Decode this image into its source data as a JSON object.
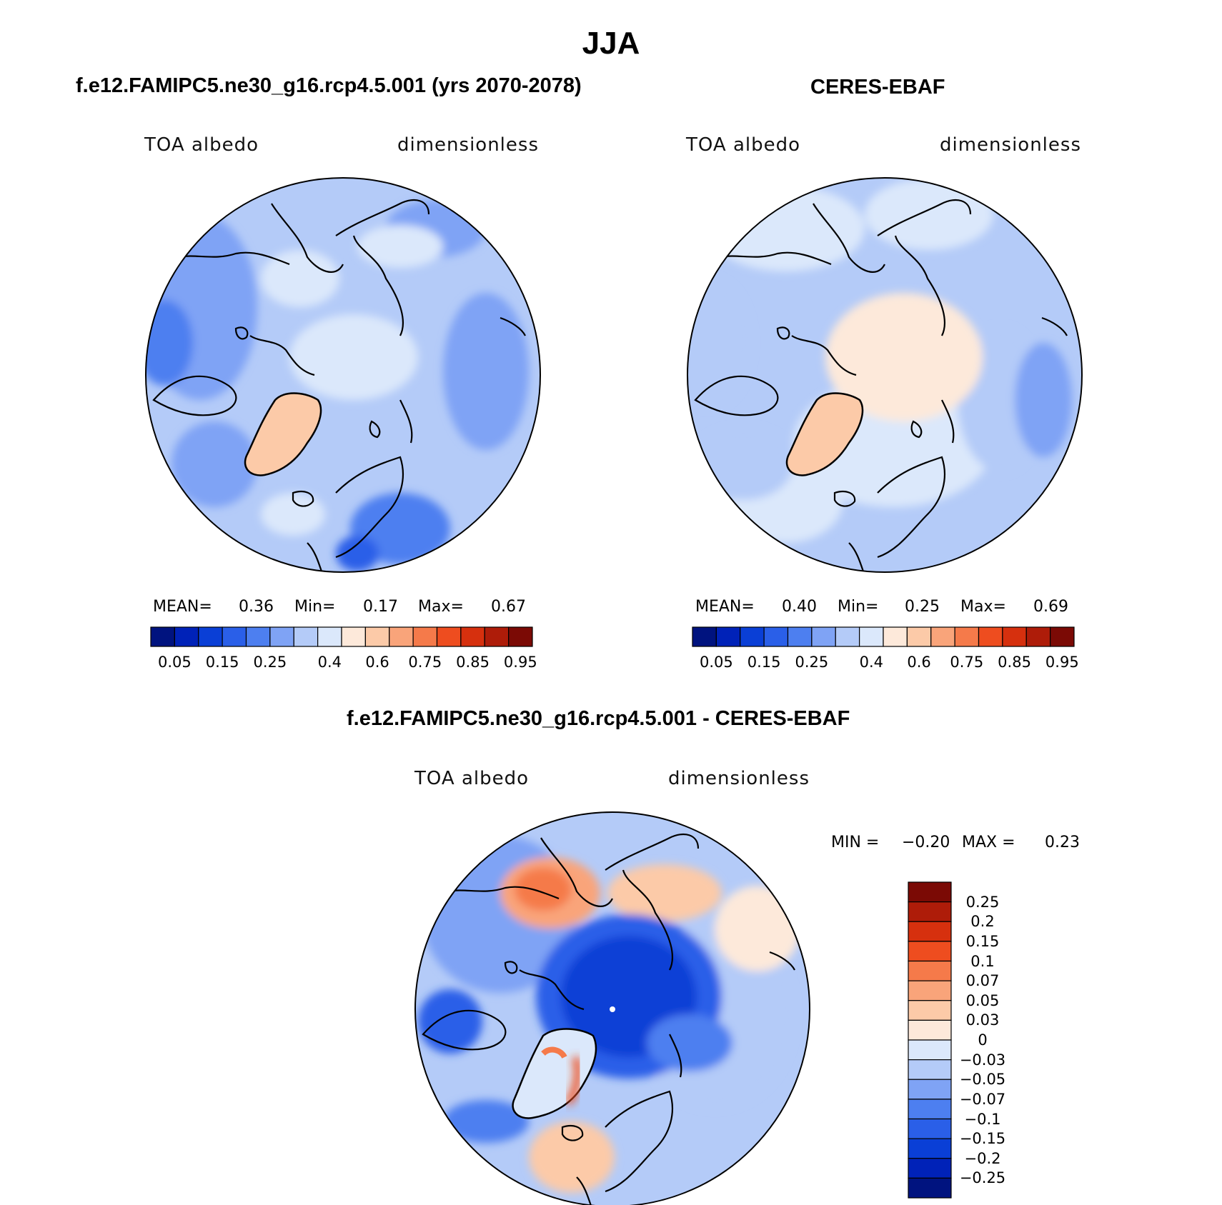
{
  "title": "JJA",
  "panels": [
    {
      "heading": "f.e12.FAMIPC5.ne30_g16.rcp4.5.001 (yrs 2070-2078)",
      "variable": "TOA albedo",
      "units": "dimensionless",
      "stats": {
        "mean_label": "MEAN=",
        "mean": "0.36",
        "min_label": "Min=",
        "min": "0.17",
        "max_label": "Max=",
        "max": "0.67"
      }
    },
    {
      "heading": "CERES-EBAF",
      "variable": "TOA albedo",
      "units": "dimensionless",
      "stats": {
        "mean_label": "MEAN=",
        "mean": "0.40",
        "min_label": "Min=",
        "min": "0.25",
        "max_label": "Max=",
        "max": "0.69"
      }
    },
    {
      "heading": "f.e12.FAMIPC5.ne30_g16.rcp4.5.001 - CERES-EBAF",
      "variable": "TOA albedo",
      "units": "dimensionless",
      "stats": {
        "min_label": "MIN =",
        "min": "−0.20",
        "max_label": "MAX =",
        "max": "0.23"
      }
    }
  ],
  "chart_data": [
    {
      "type": "heatmap",
      "projection": "north polar stereographic",
      "title": "f.e12.FAMIPC5.ne30_g16.rcp4.5.001 (yrs 2070-2078)",
      "variable": "TOA albedo",
      "units": "dimensionless",
      "mean": 0.36,
      "min": 0.17,
      "max": 0.67,
      "colorbar": {
        "levels": [
          0.05,
          0.1,
          0.15,
          0.2,
          0.25,
          0.3,
          0.35,
          0.4,
          0.5,
          0.6,
          0.7,
          0.75,
          0.8,
          0.85,
          0.9,
          0.95
        ],
        "tick_labels": [
          "0.05",
          "0.15",
          "0.25",
          "0.4",
          "0.6",
          "0.75",
          "0.85",
          "0.95"
        ],
        "colors": [
          "#00137f",
          "#0022b8",
          "#0a3fd6",
          "#2a5fe8",
          "#4d7ff0",
          "#7fa3f5",
          "#b4cbf8",
          "#dbe8fb",
          "#fde9da",
          "#fccaa8",
          "#f9a47a",
          "#f57a4a",
          "#ee4d1f",
          "#d6300e",
          "#ae1c09",
          "#7b0a05"
        ]
      }
    },
    {
      "type": "heatmap",
      "projection": "north polar stereographic",
      "title": "CERES-EBAF",
      "variable": "TOA albedo",
      "units": "dimensionless",
      "mean": 0.4,
      "min": 0.25,
      "max": 0.69,
      "colorbar": {
        "levels": [
          0.05,
          0.1,
          0.15,
          0.2,
          0.25,
          0.3,
          0.35,
          0.4,
          0.5,
          0.6,
          0.7,
          0.75,
          0.8,
          0.85,
          0.9,
          0.95
        ],
        "tick_labels": [
          "0.05",
          "0.15",
          "0.25",
          "0.4",
          "0.6",
          "0.75",
          "0.85",
          "0.95"
        ],
        "colors": [
          "#00137f",
          "#0022b8",
          "#0a3fd6",
          "#2a5fe8",
          "#4d7ff0",
          "#7fa3f5",
          "#b4cbf8",
          "#dbe8fb",
          "#fde9da",
          "#fccaa8",
          "#f9a47a",
          "#f57a4a",
          "#ee4d1f",
          "#d6300e",
          "#ae1c09",
          "#7b0a05"
        ]
      }
    },
    {
      "type": "heatmap",
      "projection": "north polar stereographic",
      "title": "f.e12.FAMIPC5.ne30_g16.rcp4.5.001 - CERES-EBAF",
      "variable": "TOA albedo",
      "units": "dimensionless",
      "min": -0.2,
      "max": 0.23,
      "colorbar": {
        "orientation": "vertical",
        "levels": [
          -0.25,
          -0.2,
          -0.15,
          -0.1,
          -0.07,
          -0.05,
          -0.03,
          0,
          0.03,
          0.05,
          0.07,
          0.1,
          0.15,
          0.2,
          0.25
        ],
        "tick_labels": [
          "0.25",
          "0.2",
          "0.15",
          "0.1",
          "0.07",
          "0.05",
          "0.03",
          "0",
          "−0.03",
          "−0.05",
          "−0.07",
          "−0.1",
          "−0.15",
          "−0.2",
          "−0.25"
        ],
        "colors_top_to_bottom": [
          "#7b0a05",
          "#ae1c09",
          "#d6300e",
          "#ee4d1f",
          "#f57a4a",
          "#f9a47a",
          "#fccaa8",
          "#fde9da",
          "#dbe8fb",
          "#b4cbf8",
          "#7fa3f5",
          "#4d7ff0",
          "#2a5fe8",
          "#0a3fd6",
          "#0022b8",
          "#00137f"
        ]
      }
    }
  ]
}
